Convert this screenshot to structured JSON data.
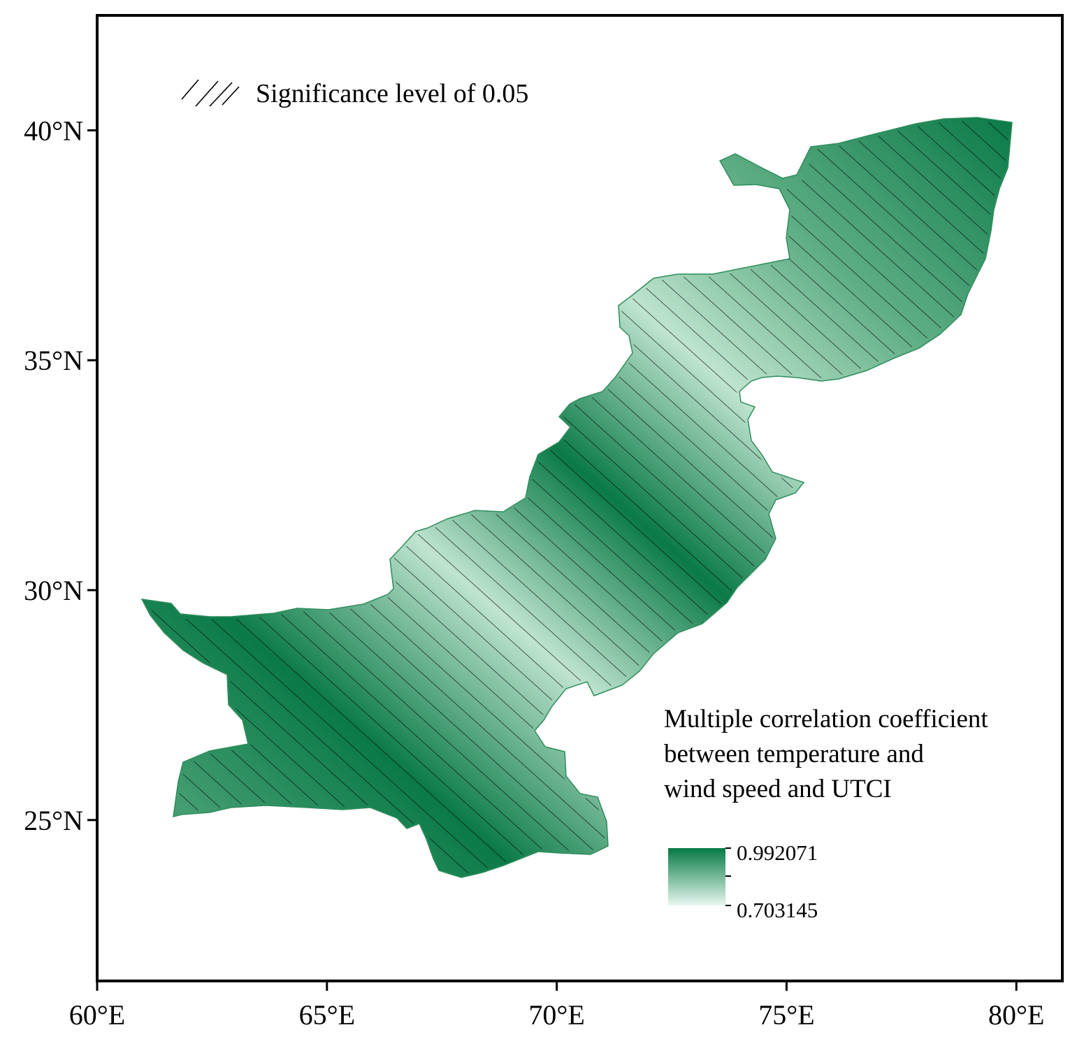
{
  "map": {
    "x_axis": {
      "ticks": [
        {
          "value": 60,
          "label": "60°E"
        },
        {
          "value": 65,
          "label": "65°E"
        },
        {
          "value": 70,
          "label": "70°E"
        },
        {
          "value": 75,
          "label": "75°E"
        },
        {
          "value": 80,
          "label": "80°E"
        }
      ],
      "range": [
        60,
        81
      ]
    },
    "y_axis": {
      "ticks": [
        {
          "value": 25,
          "label": "25°N"
        },
        {
          "value": 30,
          "label": "30°N"
        },
        {
          "value": 35,
          "label": "35°N"
        },
        {
          "value": 40,
          "label": "40°N"
        }
      ],
      "range": [
        21.5,
        42.5
      ]
    },
    "significance": {
      "label": "Significance level of 0.05",
      "hatch": "diagonal"
    },
    "legend": {
      "title_lines": [
        "Multiple correlation coefficient",
        "between temperature and",
        "wind speed and UTCI"
      ],
      "max_label": "0.992071",
      "min_label": "0.703145",
      "high_color": "#067a45",
      "low_color": "#e8f7ef"
    },
    "colors": {
      "region_light": "#bfe4d0",
      "region_mid": "#5fae84",
      "region_dark": "#0a7a47",
      "hatch": "#000000",
      "frame": "#000000"
    }
  }
}
